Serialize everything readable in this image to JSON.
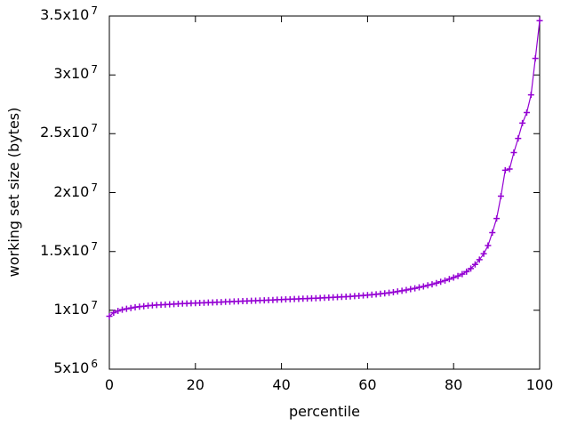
{
  "colors": {
    "background": "#ffffff",
    "axis": "#000000",
    "text": "#000000",
    "series": "#9400d3"
  },
  "chart_data": {
    "type": "line",
    "xlabel": "percentile",
    "ylabel": "working set size (bytes)",
    "xlim": [
      0,
      100
    ],
    "ylim": [
      5000000,
      35000000
    ],
    "grid": false,
    "legend": "none",
    "x_ticks": {
      "values": [
        0,
        20,
        40,
        60,
        80,
        100
      ],
      "labels": [
        "0",
        "20",
        "40",
        "60",
        "80",
        "100"
      ]
    },
    "y_ticks": {
      "values": [
        5000000,
        10000000,
        15000000,
        20000000,
        25000000,
        30000000,
        35000000
      ],
      "labels": [
        "5x10^6",
        "1x10^7",
        "1.5x10^7",
        "2x10^7",
        "2.5x10^7",
        "3x10^7",
        "3.5x10^7"
      ]
    },
    "series": [
      {
        "name": "working set size",
        "color": "#9400d3",
        "marker": "plus",
        "x": [
          0,
          1,
          2,
          3,
          4,
          5,
          6,
          7,
          8,
          9,
          10,
          11,
          12,
          13,
          14,
          15,
          16,
          17,
          18,
          19,
          20,
          21,
          22,
          23,
          24,
          25,
          26,
          27,
          28,
          29,
          30,
          31,
          32,
          33,
          34,
          35,
          36,
          37,
          38,
          39,
          40,
          41,
          42,
          43,
          44,
          45,
          46,
          47,
          48,
          49,
          50,
          51,
          52,
          53,
          54,
          55,
          56,
          57,
          58,
          59,
          60,
          61,
          62,
          63,
          64,
          65,
          66,
          67,
          68,
          69,
          70,
          71,
          72,
          73,
          74,
          75,
          76,
          77,
          78,
          79,
          80,
          81,
          82,
          83,
          84,
          85,
          86,
          87,
          88,
          89,
          90,
          91,
          92,
          93,
          94,
          95,
          96,
          97,
          98,
          99,
          100
        ],
        "values": [
          9500000,
          9800000,
          9950000,
          10050000,
          10130000,
          10200000,
          10260000,
          10310000,
          10350000,
          10390000,
          10420000,
          10450000,
          10470000,
          10490000,
          10510000,
          10530000,
          10550000,
          10570000,
          10580000,
          10600000,
          10610000,
          10630000,
          10640000,
          10660000,
          10670000,
          10690000,
          10700000,
          10720000,
          10730000,
          10750000,
          10760000,
          10780000,
          10790000,
          10810000,
          10820000,
          10840000,
          10850000,
          10870000,
          10880000,
          10900000,
          10910000,
          10930000,
          10940000,
          10960000,
          10970000,
          10990000,
          11000000,
          11020000,
          11030000,
          11050000,
          11060000,
          11080000,
          11100000,
          11120000,
          11140000,
          11160000,
          11180000,
          11210000,
          11230000,
          11260000,
          11290000,
          11330000,
          11360000,
          11400000,
          11440000,
          11490000,
          11540000,
          11600000,
          11660000,
          11730000,
          11800000,
          11870000,
          11950000,
          12030000,
          12120000,
          12210000,
          12310000,
          12420000,
          12530000,
          12650000,
          12780000,
          12920000,
          13080000,
          13280000,
          13550000,
          13900000,
          14300000,
          14800000,
          15500000,
          16600000,
          17800000,
          19700000,
          21900000,
          22000000,
          23400000,
          24600000,
          25900000,
          26800000,
          28300000,
          31400000,
          34600000
        ]
      }
    ]
  }
}
